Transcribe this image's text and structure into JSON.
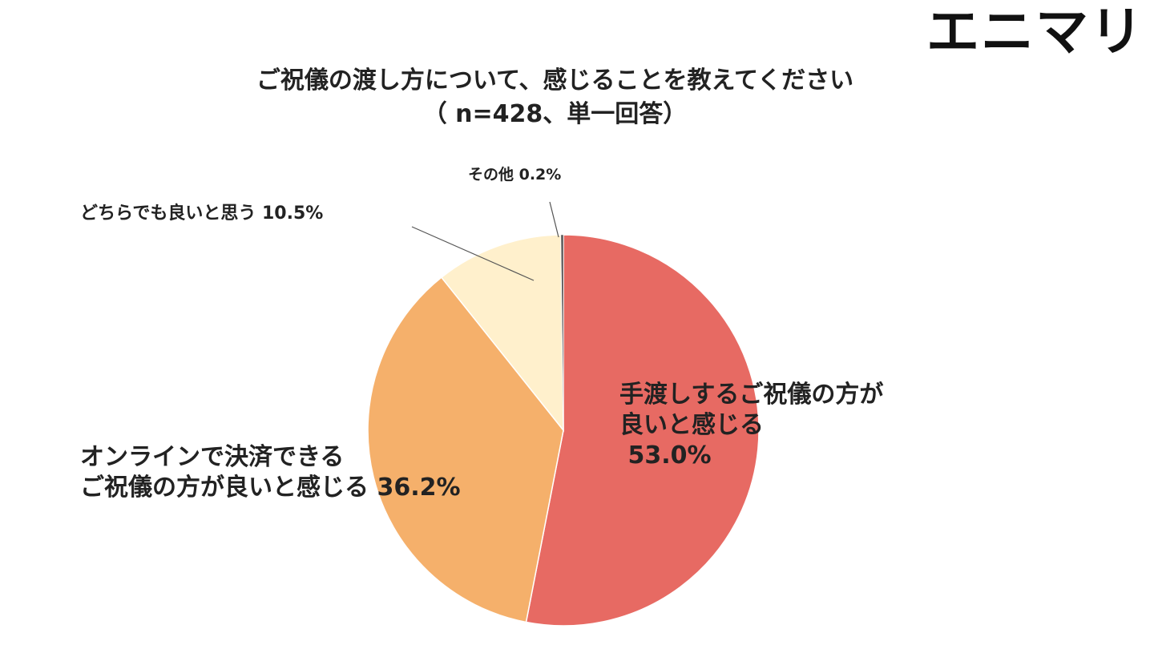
{
  "brand": {
    "logo_text": "エニマリ"
  },
  "chart_data": {
    "type": "pie",
    "title_line1": "ご祝儀の渡し方について、感じることを教えてください",
    "title_line2": "（ n=428、単一回答）",
    "slices": [
      {
        "label_lines": [
          "手渡しするご祝儀の方が",
          "良いと感じる",
          " 53.0%"
        ],
        "value": 53.0,
        "color": "#e76a63"
      },
      {
        "label_lines": [
          " オンラインで決済できる",
          "ご祝儀の方が良いと感じる 36.2%"
        ],
        "value": 36.2,
        "color": "#f5b06b"
      },
      {
        "label_lines": [
          "どちらでも良いと思う 10.5%"
        ],
        "value": 10.5,
        "color": "#fff0cc"
      },
      {
        "label_lines": [
          "その他 0.2%"
        ],
        "value": 0.2,
        "color": "#555555"
      }
    ],
    "start": "top",
    "direction": "clockwise",
    "legend": "none"
  }
}
